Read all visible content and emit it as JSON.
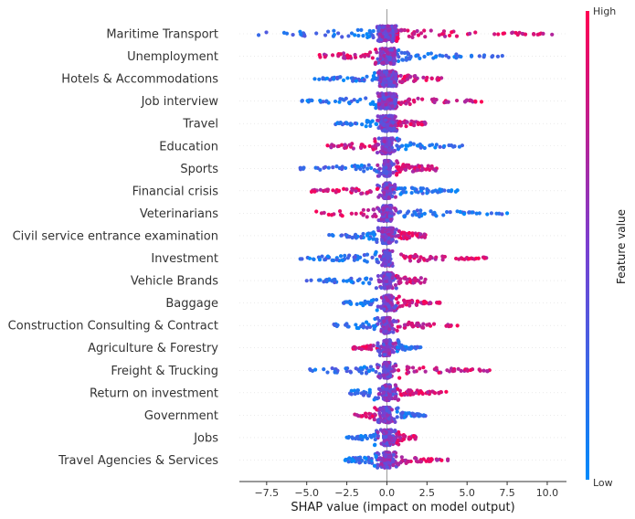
{
  "chart_data": {
    "type": "scatter",
    "subtype": "shap-beeswarm",
    "title": "",
    "xlabel": "SHAP value (impact on model output)",
    "xlim": [
      -9.2,
      11.2
    ],
    "xticks": [
      -7.5,
      -5.0,
      -2.5,
      0.0,
      2.5,
      5.0,
      7.5,
      10.0
    ],
    "xtick_labels": [
      "−7.5",
      "−5.0",
      "−2.5",
      "0.0",
      "2.5",
      "5.0",
      "7.5",
      "10.0"
    ],
    "grid": false,
    "colorbar": {
      "title": "Feature value",
      "high_label": "High",
      "low_label": "Low",
      "low_color": "#008bfb",
      "high_color": "#ff0052"
    },
    "features": [
      {
        "name": "Maritime Transport",
        "min": -8.0,
        "max": 10.3,
        "core": [
          -0.6,
          0.7
        ],
        "high_positive": true
      },
      {
        "name": "Unemployment",
        "min": -4.2,
        "max": 7.2,
        "core": [
          -0.4,
          0.5
        ],
        "high_positive": false
      },
      {
        "name": "Hotels & Accommodations",
        "min": -4.5,
        "max": 3.4,
        "core": [
          -0.5,
          0.6
        ],
        "high_positive": true
      },
      {
        "name": "Job interview",
        "min": -5.3,
        "max": 5.9,
        "core": [
          -0.5,
          0.6
        ],
        "high_positive": true
      },
      {
        "name": "Travel",
        "min": -3.2,
        "max": 2.4,
        "core": [
          -0.4,
          0.5
        ],
        "high_positive": true
      },
      {
        "name": "Education",
        "min": -3.7,
        "max": 4.7,
        "core": [
          -0.3,
          0.3
        ],
        "high_positive": false
      },
      {
        "name": "Sports",
        "min": -5.4,
        "max": 3.1,
        "core": [
          -0.2,
          0.2
        ],
        "high_positive": true
      },
      {
        "name": "Financial crisis",
        "min": -4.7,
        "max": 4.4,
        "core": [
          -0.2,
          0.2
        ],
        "high_positive": false
      },
      {
        "name": "Veterinarians",
        "min": -4.4,
        "max": 7.5,
        "core": [
          -0.3,
          0.3
        ],
        "high_positive": false
      },
      {
        "name": "Civil service entrance examination",
        "min": -3.6,
        "max": 2.4,
        "core": [
          -0.3,
          0.4
        ],
        "high_positive": true
      },
      {
        "name": "Investment",
        "min": -5.4,
        "max": 6.2,
        "core": [
          -0.2,
          0.2
        ],
        "high_positive": true
      },
      {
        "name": "Vehicle Brands",
        "min": -5.0,
        "max": 2.4,
        "core": [
          -0.2,
          0.2
        ],
        "high_positive": true
      },
      {
        "name": "Baggage",
        "min": -2.7,
        "max": 3.3,
        "core": [
          -0.2,
          0.3
        ],
        "high_positive": true
      },
      {
        "name": "Construction Consulting & Contract",
        "min": -3.3,
        "max": 4.4,
        "core": [
          -0.2,
          0.2
        ],
        "high_positive": true
      },
      {
        "name": "Agriculture & Forestry",
        "min": -2.1,
        "max": 2.1,
        "core": [
          -0.2,
          0.2
        ],
        "high_positive": false
      },
      {
        "name": "Freight & Trucking",
        "min": -4.8,
        "max": 6.4,
        "core": [
          -0.2,
          0.2
        ],
        "high_positive": true
      },
      {
        "name": "Return on investment",
        "min": -2.3,
        "max": 3.7,
        "core": [
          -0.2,
          0.2
        ],
        "high_positive": true
      },
      {
        "name": "Government",
        "min": -2.0,
        "max": 2.4,
        "core": [
          -0.2,
          0.2
        ],
        "high_positive": false
      },
      {
        "name": "Jobs",
        "min": -2.5,
        "max": 1.8,
        "core": [
          -0.2,
          0.2
        ],
        "high_positive": true
      },
      {
        "name": "Travel Agencies & Services",
        "min": -2.6,
        "max": 3.8,
        "core": [
          -0.2,
          0.2
        ],
        "high_positive": true
      }
    ]
  }
}
